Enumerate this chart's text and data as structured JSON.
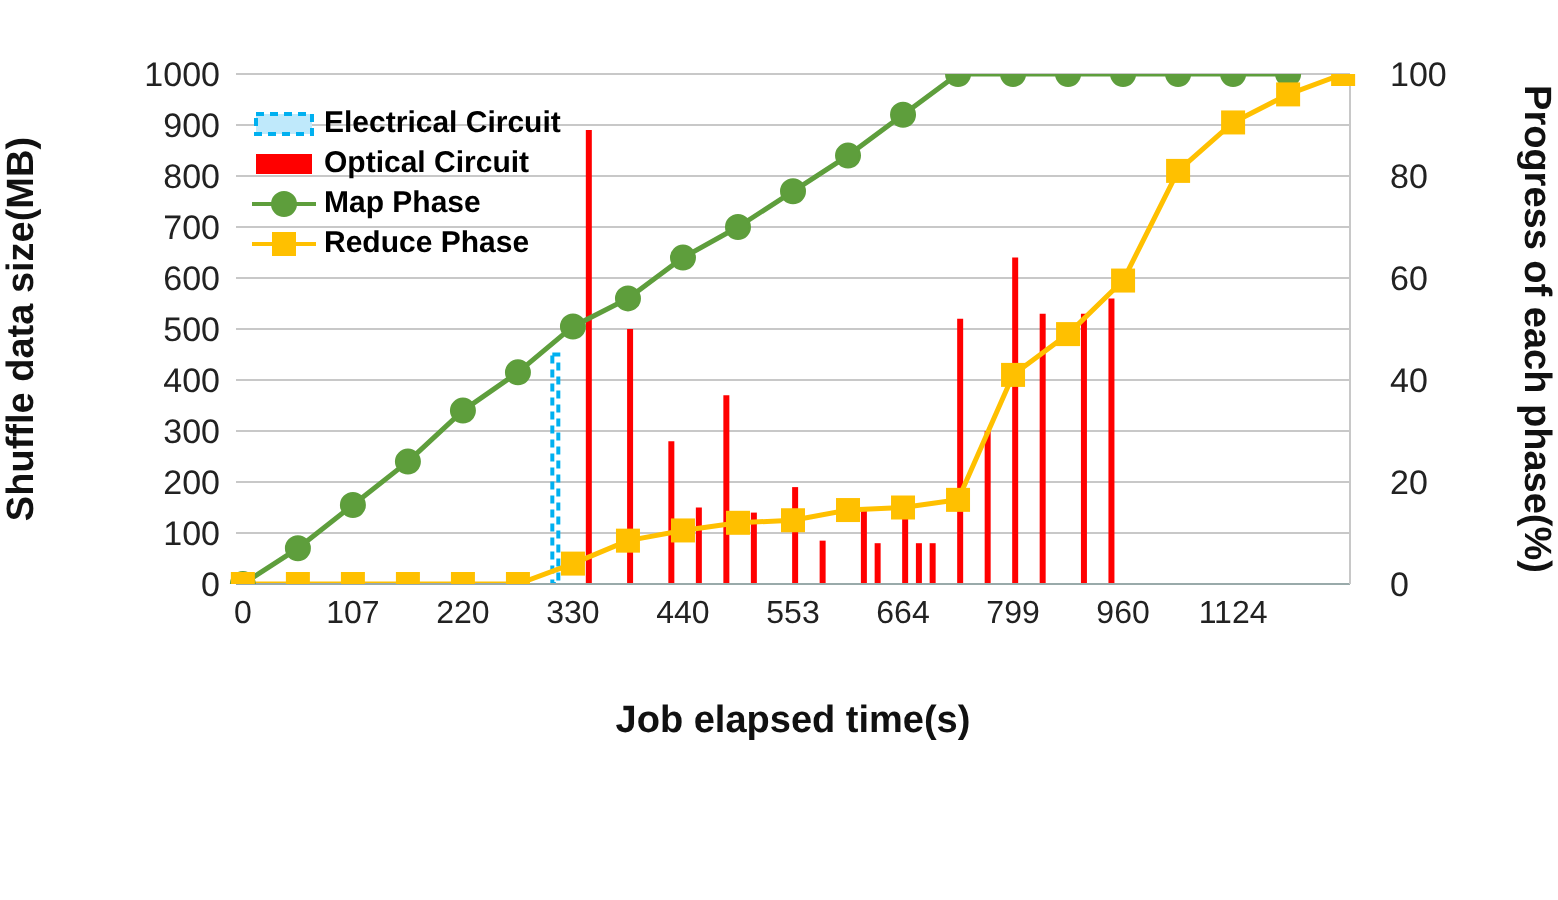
{
  "chart_data": {
    "type": "bar",
    "xlabel": "Job elapsed time(s)",
    "ylabel": "Shuffle data size(MB)",
    "y2label": "Progress of each phase(%)",
    "categories": [
      "0",
      null,
      null,
      null,
      null,
      null,
      null,
      null,
      "107",
      null,
      null,
      null,
      null,
      null,
      null,
      null,
      "220",
      null,
      null,
      null,
      null,
      null,
      null,
      null,
      "330",
      null,
      null,
      null,
      null,
      null,
      null,
      null,
      "440",
      null,
      null,
      null,
      null,
      null,
      null,
      null,
      "553",
      null,
      null,
      null,
      null,
      null,
      null,
      null,
      "664",
      null,
      null,
      null,
      null,
      null,
      null,
      null,
      "799",
      null,
      null,
      null,
      null,
      null,
      null,
      null,
      "960",
      null,
      null,
      null,
      null,
      null,
      null,
      null,
      "1124",
      null,
      null,
      null,
      null,
      null,
      null,
      null,
      null
    ],
    "ylim": [
      0,
      1000
    ],
    "yticks": [
      0,
      100,
      200,
      300,
      400,
      500,
      600,
      700,
      800,
      900,
      1000
    ],
    "y2lim": [
      0,
      100
    ],
    "y2ticks": [
      0,
      20,
      40,
      60,
      80,
      100
    ],
    "grid": "y",
    "legend": "top left",
    "series": [
      {
        "name": "Electrical Circuit",
        "color": "#00b0f0",
        "line_style": "dashed",
        "values": [
          null,
          null,
          null,
          null,
          null,
          null,
          null,
          null,
          null,
          null,
          null,
          null,
          null,
          null,
          null,
          null,
          null,
          null,
          null,
          null,
          null,
          null,
          null,
          450,
          null,
          null,
          null,
          null,
          null,
          null,
          null,
          null,
          null,
          null,
          null,
          null,
          null,
          null,
          null,
          null,
          null,
          null,
          null,
          null,
          null,
          null,
          null,
          null,
          null,
          null,
          null,
          null,
          null,
          null,
          null,
          null,
          null,
          null,
          null,
          null,
          null,
          null,
          null,
          null,
          null,
          null,
          null,
          null,
          null,
          null,
          null,
          null,
          null,
          null,
          null,
          null,
          null,
          null,
          null,
          null,
          null
        ]
      },
      {
        "name": "Optical Circuit",
        "color": "#ff0000",
        "values": [
          null,
          null,
          null,
          null,
          null,
          null,
          null,
          null,
          null,
          null,
          null,
          null,
          null,
          null,
          null,
          null,
          null,
          null,
          null,
          null,
          null,
          null,
          null,
          null,
          null,
          890,
          null,
          null,
          500,
          null,
          null,
          280,
          null,
          150,
          null,
          370,
          null,
          140,
          null,
          null,
          190,
          null,
          85,
          null,
          null,
          145,
          80,
          null,
          130,
          80,
          80,
          null,
          520,
          null,
          300,
          null,
          640,
          null,
          530,
          null,
          null,
          530,
          null,
          560,
          null,
          null,
          null,
          null,
          null,
          null,
          null,
          null,
          null,
          null,
          null,
          null,
          null,
          null,
          null,
          null,
          null
        ]
      },
      {
        "name": "Map Phase",
        "type": "line",
        "axis": "y2",
        "color": "#5e9e3c",
        "marker": "circle",
        "values": [
          0,
          null,
          null,
          null,
          7,
          null,
          null,
          null,
          15.5,
          null,
          null,
          null,
          24,
          null,
          null,
          null,
          34,
          null,
          null,
          null,
          41.5,
          null,
          null,
          null,
          50.5,
          null,
          null,
          null,
          56,
          null,
          null,
          null,
          64,
          null,
          null,
          null,
          70,
          null,
          null,
          null,
          77,
          null,
          null,
          null,
          84,
          null,
          null,
          null,
          92,
          null,
          null,
          null,
          100,
          null,
          null,
          null,
          100,
          null,
          null,
          null,
          100,
          null,
          null,
          null,
          100,
          null,
          null,
          null,
          100,
          null,
          null,
          null,
          100,
          null,
          null,
          null,
          100,
          null,
          null,
          null,
          null
        ]
      },
      {
        "name": "Reduce Phase",
        "type": "line",
        "axis": "y2",
        "color": "#ffc000",
        "marker": "square",
        "values": [
          0,
          null,
          null,
          null,
          0,
          null,
          null,
          null,
          0,
          null,
          null,
          null,
          0,
          null,
          null,
          null,
          0,
          null,
          null,
          null,
          0,
          null,
          null,
          null,
          4,
          null,
          null,
          null,
          8.5,
          null,
          null,
          null,
          10.5,
          null,
          null,
          null,
          12,
          null,
          null,
          null,
          12.5,
          null,
          null,
          null,
          14.5,
          null,
          null,
          null,
          15,
          null,
          null,
          null,
          16.5,
          null,
          null,
          null,
          41,
          null,
          null,
          null,
          49,
          null,
          null,
          null,
          59.5,
          null,
          null,
          null,
          81,
          null,
          null,
          null,
          90.5,
          null,
          null,
          null,
          96,
          null,
          null,
          null,
          100
        ]
      }
    ]
  }
}
